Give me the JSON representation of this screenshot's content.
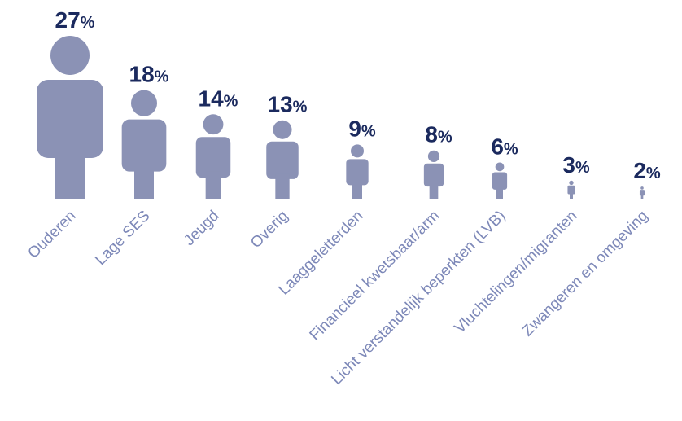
{
  "chart_data": {
    "type": "bar",
    "mark": "person-pictogram",
    "categories": [
      "Ouderen",
      "Lage SES",
      "Jeugd",
      "Overig",
      "Laaggeletterden",
      "Financieel kwetsbaar/arm",
      "Licht verstandelijk beperkten (LVB)",
      "Vluchtelingen/migranten",
      "Zwangeren en omgeving"
    ],
    "values": [
      27,
      18,
      14,
      13,
      9,
      8,
      6,
      3,
      2
    ],
    "unit": "%",
    "grid": false,
    "legend": "none"
  },
  "colors": {
    "figure": "#8b92b5",
    "value_text": "#1b2a5e",
    "label_text": "#7d88b8"
  }
}
